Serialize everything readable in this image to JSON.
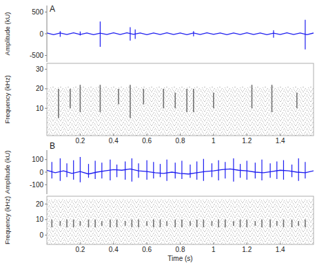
{
  "chart_data": [
    {
      "type": "line",
      "title": "A",
      "y_label": "Amplitude (kU)",
      "color": "#1c1cf0",
      "xlim": [
        0,
        1.6
      ],
      "ylim": [
        -650,
        650
      ],
      "yticks": [
        500,
        0,
        -500
      ],
      "tick_labels": "y",
      "x": [
        0,
        0.04,
        0.08,
        0.12,
        0.16,
        0.2,
        0.24,
        0.28,
        0.32,
        0.36,
        0.4,
        0.44,
        0.48,
        0.52,
        0.56,
        0.6,
        0.64,
        0.68,
        0.72,
        0.76,
        0.8,
        0.84,
        0.88,
        0.92,
        0.96,
        1,
        1.04,
        1.08,
        1.12,
        1.16,
        1.2,
        1.24,
        1.28,
        1.32,
        1.36,
        1.4,
        1.44,
        1.48,
        1.52,
        1.56,
        1.6
      ],
      "values": [
        18,
        -20,
        16,
        -18,
        20,
        -16,
        18,
        -22,
        15,
        -18,
        20,
        -17,
        22,
        -15,
        18,
        -20,
        16,
        -19,
        21,
        -16,
        18,
        -20,
        17,
        -18,
        20,
        -15,
        19,
        -21,
        16,
        -18,
        22,
        -17,
        18,
        -20,
        15,
        -19,
        21,
        -16,
        18,
        -20,
        16
      ],
      "spikes": {
        "x": [
          0.08,
          0.2,
          0.32,
          0.5,
          0.53,
          0.88,
          1.36,
          1.55
        ],
        "high": [
          60,
          50,
          280,
          150,
          100,
          60,
          80,
          320
        ],
        "low": [
          -70,
          -40,
          -300,
          -160,
          -120,
          -60,
          -90,
          -360
        ]
      }
    },
    {
      "type": "spectrogram",
      "y_label": "Frequency (kHz)",
      "color": "#444444",
      "xlim": [
        0,
        1.6
      ],
      "ylim": [
        -4,
        33
      ],
      "xticks": [
        0.2,
        0.4,
        0.6,
        0.8,
        1,
        1.2,
        1.4
      ],
      "yticks": [
        10,
        20,
        30
      ],
      "noise_band": [
        -4,
        21
      ],
      "events": {
        "x": [
          0.07,
          0.14,
          0.2,
          0.32,
          0.43,
          0.5,
          0.58,
          0.7,
          0.77,
          0.84,
          0.88,
          1,
          1.23,
          1.35,
          1.5
        ],
        "low": [
          5,
          10,
          8,
          8,
          12,
          5,
          12,
          10,
          10,
          8,
          8,
          10,
          10,
          8,
          10
        ],
        "high": [
          20,
          20,
          22,
          22,
          20,
          22,
          20,
          20,
          18,
          20,
          20,
          18,
          22,
          22,
          18
        ]
      }
    },
    {
      "type": "line",
      "title": "B",
      "y_label": "Amplitude (kU)",
      "color": "#1c1cf0",
      "xlim": [
        0,
        1.6
      ],
      "ylim": [
        -175,
        175
      ],
      "yticks": [
        100,
        0,
        -100
      ],
      "tick_labels": "y",
      "x": [
        0,
        0.05,
        0.1,
        0.15,
        0.2,
        0.25,
        0.3,
        0.35,
        0.4,
        0.45,
        0.5,
        0.55,
        0.6,
        0.65,
        0.7,
        0.75,
        0.8,
        0.85,
        0.9,
        0.95,
        1,
        1.05,
        1.1,
        1.15,
        1.2,
        1.25,
        1.3,
        1.35,
        1.4,
        1.45,
        1.5,
        1.55,
        1.6
      ],
      "values": [
        15,
        -5,
        10,
        -10,
        5,
        -15,
        0,
        10,
        20,
        15,
        25,
        10,
        5,
        -5,
        -10,
        0,
        -10,
        -15,
        -5,
        5,
        10,
        20,
        25,
        15,
        10,
        0,
        -5,
        5,
        15,
        10,
        0,
        -5,
        10
      ],
      "spikes": {
        "x": [
          0.03,
          0.08,
          0.12,
          0.16,
          0.2,
          0.25,
          0.29,
          0.33,
          0.38,
          0.42,
          0.47,
          0.51,
          0.55,
          0.6,
          0.64,
          0.68,
          0.72,
          0.77,
          0.81,
          0.86,
          0.9,
          0.94,
          0.99,
          1.03,
          1.07,
          1.12,
          1.16,
          1.2,
          1.25,
          1.29,
          1.34,
          1.38,
          1.42,
          1.47,
          1.51,
          1.55
        ],
        "high": [
          80,
          110,
          70,
          95,
          120,
          65,
          90,
          75,
          100,
          60,
          85,
          110,
          70,
          95,
          80,
          65,
          100,
          75,
          90,
          60,
          85,
          105,
          70,
          95,
          80,
          110,
          65,
          90,
          75,
          100,
          70,
          85,
          95,
          60,
          110,
          80
        ],
        "low": [
          -50,
          -70,
          -40,
          -60,
          -80,
          -45,
          -55,
          -50,
          -65,
          -40,
          -60,
          -75,
          -45,
          -60,
          -50,
          -40,
          -70,
          -50,
          -55,
          -45,
          -60,
          -70,
          -40,
          -65,
          -50,
          -75,
          -45,
          -60,
          -50,
          -65,
          -45,
          -55,
          -60,
          -40,
          -70,
          -50
        ]
      }
    },
    {
      "type": "spectrogram",
      "y_label": "Frequency (kHz)",
      "x_label": "Time (s)",
      "color": "#444444",
      "xlim": [
        0,
        1.6
      ],
      "ylim": [
        -6,
        25
      ],
      "xticks": [
        0.2,
        0.4,
        0.6,
        0.8,
        1,
        1.2,
        1.4
      ],
      "yticks": [
        0,
        10,
        20
      ],
      "noise_band": [
        -6,
        23
      ],
      "events": {
        "x": [
          0.03,
          0.08,
          0.12,
          0.16,
          0.2,
          0.25,
          0.29,
          0.33,
          0.38,
          0.42,
          0.47,
          0.51,
          0.55,
          0.6,
          0.64,
          0.68,
          0.72,
          0.77,
          0.81,
          0.86,
          0.9,
          0.94,
          0.99,
          1.03,
          1.07,
          1.12,
          1.16,
          1.2,
          1.25,
          1.29,
          1.34,
          1.38,
          1.42,
          1.47,
          1.51,
          1.55
        ],
        "low": [
          5,
          6,
          5,
          5,
          6,
          5,
          5,
          6,
          5,
          5,
          6,
          5,
          5,
          6,
          5,
          5,
          6,
          5,
          5,
          6,
          5,
          5,
          6,
          5,
          5,
          6,
          5,
          5,
          6,
          5,
          5,
          6,
          5,
          5,
          6,
          5
        ],
        "high": [
          10,
          9,
          10,
          10,
          9,
          10,
          10,
          9,
          10,
          10,
          9,
          10,
          10,
          9,
          10,
          10,
          9,
          10,
          10,
          9,
          10,
          10,
          9,
          10,
          10,
          9,
          10,
          10,
          9,
          10,
          10,
          9,
          10,
          10,
          9,
          10
        ]
      }
    }
  ]
}
